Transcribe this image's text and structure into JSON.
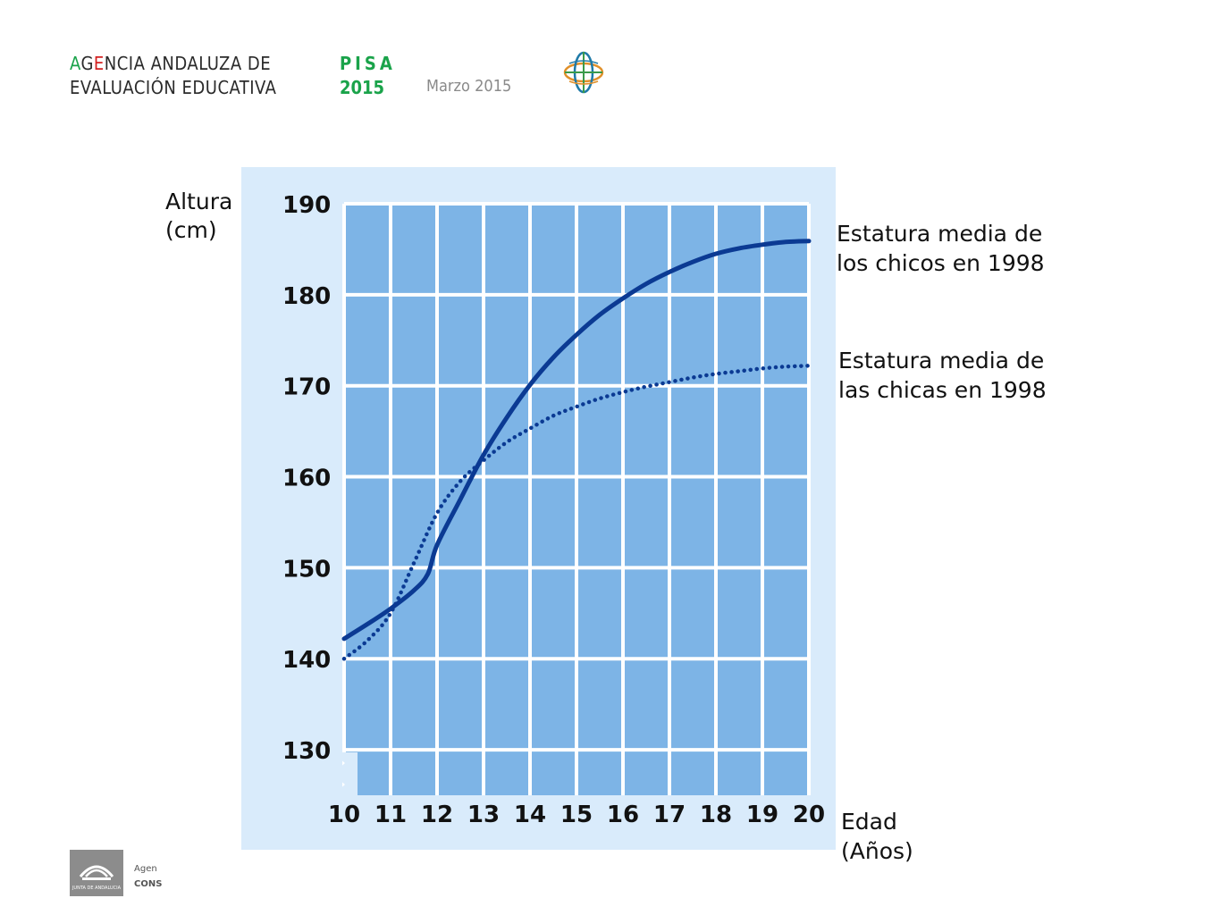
{
  "header": {
    "agency_line1_a": "A",
    "agency_line1_b": "G",
    "agency_line1_c": "E",
    "agency_line1_d": "NCIA ANDALUZA DE",
    "agency_line2": "EVALUACIÓN EDUCATIVA",
    "pisa": "PISA",
    "year": "2015",
    "date": "Marzo 2015"
  },
  "footer": {
    "line1": "Agen",
    "line2": "CONS",
    "logo_text": "JUNTA DE ANDALUCIA"
  },
  "colors": {
    "panel_bg": "#d9ebfb",
    "plot_bg": "#7db4e6",
    "grid": "#ffffff",
    "line": "#0b3a93",
    "accent_green": "#1aa34a",
    "accent_red": "#d42020"
  },
  "chart_data": {
    "type": "line",
    "title": "",
    "ylabel": "Altura\n(cm)",
    "xlabel": "Edad\n(Años)",
    "xlim": [
      10,
      20
    ],
    "ylim": [
      125,
      190
    ],
    "x_ticks": [
      10,
      11,
      12,
      13,
      14,
      15,
      16,
      17,
      18,
      19,
      20
    ],
    "y_ticks": [
      130,
      140,
      150,
      160,
      170,
      180,
      190
    ],
    "grid": true,
    "series": [
      {
        "name": "Estatura media de los chicos en 1998",
        "style": "solid",
        "x": [
          10,
          10.5,
          11,
          11.5,
          11.8,
          12,
          12.5,
          13,
          13.5,
          14,
          14.5,
          15,
          15.5,
          16,
          16.5,
          17,
          17.5,
          18,
          18.5,
          19,
          19.5,
          20
        ],
        "y": [
          142.2,
          143.8,
          145.5,
          147.5,
          149.3,
          152.5,
          157.5,
          162.4,
          166.5,
          170.1,
          173.1,
          175.6,
          177.8,
          179.6,
          181.2,
          182.5,
          183.6,
          184.5,
          185.1,
          185.5,
          185.8,
          185.9
        ]
      },
      {
        "name": "Estatura media de las chicas en 1998",
        "style": "dotted",
        "x": [
          10,
          10.5,
          11,
          11.5,
          12,
          12.5,
          13,
          13.5,
          14,
          14.5,
          15,
          15.5,
          16,
          16.5,
          17,
          17.5,
          18,
          18.5,
          19,
          19.5,
          20
        ],
        "y": [
          140.0,
          142.0,
          145.0,
          150.5,
          156.0,
          159.5,
          161.8,
          163.8,
          165.3,
          166.7,
          167.7,
          168.6,
          169.3,
          169.9,
          170.4,
          170.9,
          171.3,
          171.6,
          171.9,
          172.1,
          172.2
        ]
      }
    ],
    "legend_labels": [
      [
        "Estatura media de",
        "los chicos en 1998"
      ],
      [
        "Estatura media de",
        "las chicas en 1998"
      ]
    ]
  }
}
